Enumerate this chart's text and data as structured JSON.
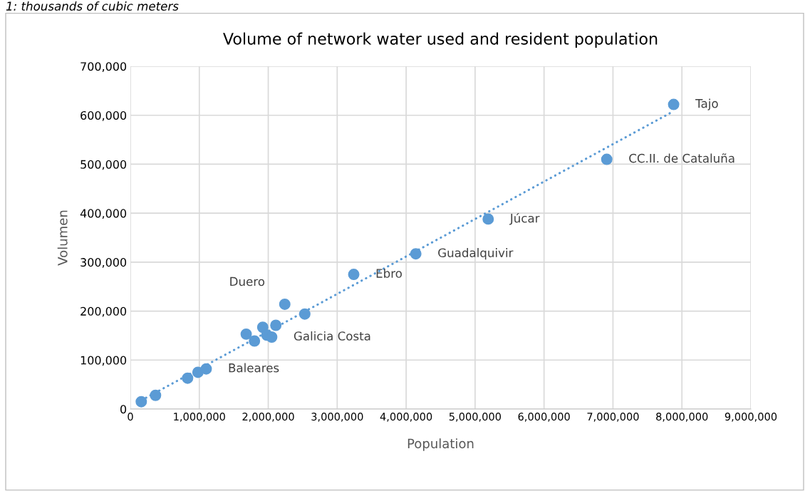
{
  "chart_data": {
    "type": "scatter",
    "title": "Volume of network water used and resident population",
    "xlabel": "Population",
    "ylabel": "Volumen",
    "annotations": [
      "1: thousands of cubic meters",
      {
        "text": "Tajo",
        "x": 7880000,
        "y": 622000
      },
      {
        "text": "CC.II. de Cataluña",
        "x": 6910000,
        "y": 510000
      },
      {
        "text": "Júcar",
        "x": 5190000,
        "y": 388000
      },
      {
        "text": "Guadalquivir",
        "x": 4140000,
        "y": 317000
      },
      {
        "text": "Ebro",
        "x": 3240000,
        "y": 275000
      },
      {
        "text": "Duero",
        "x": 2240000,
        "y": 214000
      },
      {
        "text": "Galicia Costa",
        "x": 2050000,
        "y": 147000
      },
      {
        "text": "Baleares",
        "x": 1100000,
        "y": 82000
      }
    ],
    "series": [
      {
        "color": "#5b9bd5",
        "marker": "circle",
        "x": [
          158000,
          365000,
          830000,
          980000,
          1100000,
          1680000,
          1800000,
          1920000,
          1980000,
          2050000,
          2110000,
          2240000,
          2530000,
          3240000,
          4140000,
          5190000,
          6910000,
          7880000
        ],
        "values": [
          15000,
          28000,
          63000,
          75000,
          82000,
          153000,
          139000,
          167000,
          151000,
          147000,
          171000,
          214000,
          194000,
          275000,
          317000,
          388000,
          510000,
          622000
        ]
      },
      {
        "type": "line",
        "color": "#5b9bd5",
        "line_style": "dotted",
        "marker": "none",
        "x": [
          227000,
          7850000
        ],
        "values": [
          23000,
          606000
        ]
      }
    ],
    "xlim": [
      0,
      9000000
    ],
    "xticks": [
      0,
      {
        "value": 1000000,
        "label": "1,000,000"
      },
      {
        "value": 2000000,
        "label": "2,000,000"
      },
      {
        "value": 3000000,
        "label": "3,000,000"
      },
      {
        "value": 4000000,
        "label": "4,000,000"
      },
      {
        "value": 5000000,
        "label": "5,000,000"
      },
      {
        "value": 6000000,
        "label": "6,000,000"
      },
      {
        "value": 7000000,
        "label": "7,000,000"
      },
      {
        "value": 8000000,
        "label": "8,000,000"
      },
      {
        "value": 9000000,
        "label": "9,000,000"
      }
    ],
    "ylim": [
      0,
      700000
    ],
    "yticks": [
      0,
      {
        "value": 100000,
        "label": "100,000"
      },
      {
        "value": 200000,
        "label": "200,000"
      },
      {
        "value": 300000,
        "label": "300,000"
      },
      {
        "value": 400000,
        "label": "400,000"
      },
      {
        "value": 500000,
        "label": "500,000"
      },
      {
        "value": 600000,
        "label": "600,000"
      },
      {
        "value": 700000,
        "label": "700,000"
      }
    ],
    "grid": true,
    "legend": false
  }
}
